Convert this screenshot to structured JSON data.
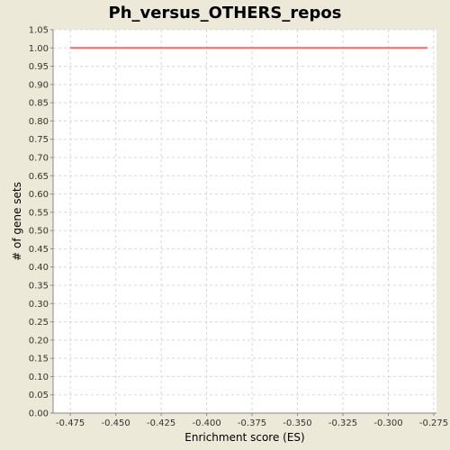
{
  "chart_data": {
    "type": "line",
    "title": "Ph_versus_OTHERS_repos",
    "xlabel": "Enrichment score (ES)",
    "ylabel": "# of gene sets",
    "xlim": [
      -0.4845,
      -0.2735
    ],
    "ylim": [
      0.0,
      1.05
    ],
    "x_ticks": [
      -0.475,
      -0.45,
      -0.425,
      -0.4,
      -0.375,
      -0.35,
      -0.325,
      -0.3,
      -0.275
    ],
    "x_tick_labels": [
      "-0.475",
      "-0.450",
      "-0.425",
      "-0.400",
      "-0.375",
      "-0.350",
      "-0.325",
      "-0.300",
      "-0.275"
    ],
    "y_ticks": [
      0.0,
      0.05,
      0.1,
      0.15,
      0.2,
      0.25,
      0.3,
      0.35,
      0.4,
      0.45,
      0.5,
      0.55,
      0.6,
      0.65,
      0.7,
      0.75,
      0.8,
      0.85,
      0.9,
      0.95,
      1.0,
      1.05
    ],
    "y_tick_labels": [
      "0.00",
      "0.05",
      "0.10",
      "0.15",
      "0.20",
      "0.25",
      "0.30",
      "0.35",
      "0.40",
      "0.45",
      "0.50",
      "0.55",
      "0.60",
      "0.65",
      "0.70",
      "0.75",
      "0.80",
      "0.85",
      "0.90",
      "0.95",
      "1.00",
      "1.05"
    ],
    "grid": true,
    "series": [
      {
        "color": "#ff6666",
        "x": [
          -0.475,
          -0.2785
        ],
        "y": [
          1.0,
          1.0
        ]
      }
    ]
  }
}
